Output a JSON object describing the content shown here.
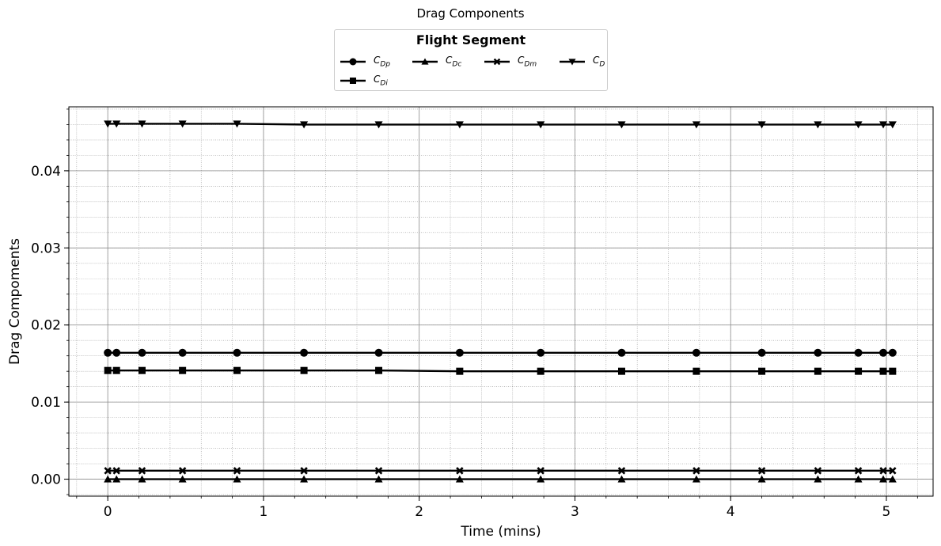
{
  "figure_title": "Drag Components",
  "legend": {
    "title": "Flight Segment",
    "placement": "upper center, outside plot"
  },
  "chart_data": {
    "type": "line",
    "title": "Drag Components",
    "xlabel": "Time (mins)",
    "ylabel": "Drag Compoments",
    "xlim": [
      -0.25,
      5.3
    ],
    "ylim": [
      -0.0022,
      0.0483
    ],
    "xticks": [
      "0",
      "1",
      "2",
      "3",
      "4",
      "5"
    ],
    "yticks": [
      "0.00",
      "0.01",
      "0.02",
      "0.03",
      "0.04"
    ],
    "grid": "major and minor",
    "x": [
      0,
      0.056,
      0.22,
      0.48,
      0.83,
      1.26,
      1.74,
      2.26,
      2.78,
      3.3,
      3.78,
      4.2,
      4.56,
      4.82,
      4.98,
      5.04
    ],
    "series": [
      {
        "name": "C_Dp",
        "label_main": "C",
        "label_sub": "Dp",
        "marker": "circle",
        "values": [
          0.0164,
          0.0164,
          0.0164,
          0.0164,
          0.0164,
          0.0164,
          0.0164,
          0.0164,
          0.0164,
          0.0164,
          0.0164,
          0.0164,
          0.0164,
          0.0164,
          0.0164,
          0.0164
        ]
      },
      {
        "name": "C_Dc",
        "label_main": "C",
        "label_sub": "Dc",
        "marker": "triangle-up",
        "values": [
          0.0,
          0.0,
          0.0,
          0.0,
          0.0,
          0.0,
          0.0,
          0.0,
          0.0,
          0.0,
          0.0,
          0.0,
          0.0,
          0.0,
          0.0,
          0.0
        ]
      },
      {
        "name": "C_Dm",
        "label_main": "C",
        "label_sub": "Dm",
        "marker": "x-filled",
        "values": [
          0.0011,
          0.0011,
          0.0011,
          0.0011,
          0.0011,
          0.0011,
          0.0011,
          0.0011,
          0.0011,
          0.0011,
          0.0011,
          0.0011,
          0.0011,
          0.0011,
          0.0011,
          0.0011
        ]
      },
      {
        "name": "C_D",
        "label_main": "C",
        "label_sub": "D",
        "marker": "triangle-down",
        "values": [
          0.0461,
          0.0461,
          0.0461,
          0.0461,
          0.0461,
          0.046,
          0.046,
          0.046,
          0.046,
          0.046,
          0.046,
          0.046,
          0.046,
          0.046,
          0.046,
          0.046
        ]
      },
      {
        "name": "C_Di",
        "label_main": "C",
        "label_sub": "Di",
        "marker": "square",
        "values": [
          0.0141,
          0.0141,
          0.0141,
          0.0141,
          0.0141,
          0.0141,
          0.0141,
          0.014,
          0.014,
          0.014,
          0.014,
          0.014,
          0.014,
          0.014,
          0.014,
          0.014
        ]
      }
    ]
  }
}
